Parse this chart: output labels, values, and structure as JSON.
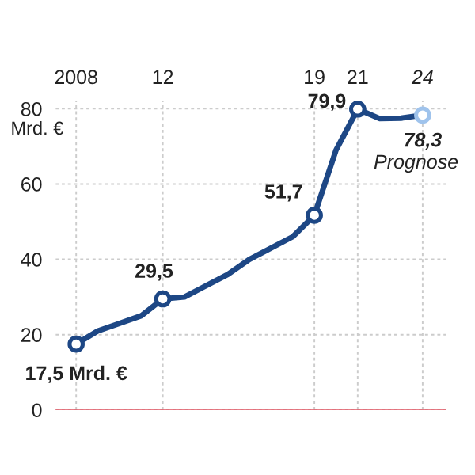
{
  "chart_data": {
    "type": "line",
    "ylabel": "Mrd. €",
    "xlim": [
      2007.05,
      2025.1
    ],
    "ylim": [
      0,
      82
    ],
    "xticks": [
      2008,
      {
        "value": 2012,
        "label": "12"
      },
      {
        "value": 2019,
        "label": "19"
      },
      {
        "value": 2021,
        "label": "21"
      },
      {
        "value": 2024,
        "label": "24"
      }
    ],
    "yticks": [
      0,
      20,
      40,
      60,
      80
    ],
    "grid": true,
    "line_style": "solid",
    "series": [
      {
        "color": "#1d4785",
        "marker": "none",
        "x": [
          2008,
          2009,
          2010,
          2011,
          2012,
          2013,
          2015,
          2016,
          2018,
          2019,
          2020,
          2021,
          2022,
          2023,
          2024
        ],
        "values": [
          17.5,
          21,
          23,
          25,
          29.5,
          30,
          36,
          40,
          46,
          51.7,
          69,
          79.9,
          77.4,
          77.5,
          78.3
        ]
      },
      {
        "type": "scatter",
        "marker": "circle",
        "x": [
          2008,
          2012,
          2019,
          2021,
          2024
        ],
        "values": [
          17.5,
          29.5,
          51.7,
          79.9,
          78.3
        ],
        "colors": [
          "#1d4785",
          "#1d4785",
          "#1d4785",
          "#1d4785",
          "#9fc3ec"
        ],
        "value_labels": [
          "17,5 Mrd. €",
          "29,5",
          "51,7",
          "79,9",
          "78,3"
        ]
      }
    ],
    "annotations": [
      {
        "text": "Prognose",
        "x": 2024,
        "y": 78.3
      }
    ],
    "ref_lines": [
      {
        "axis": "y",
        "value": 0,
        "color": "#e0505e"
      }
    ]
  }
}
